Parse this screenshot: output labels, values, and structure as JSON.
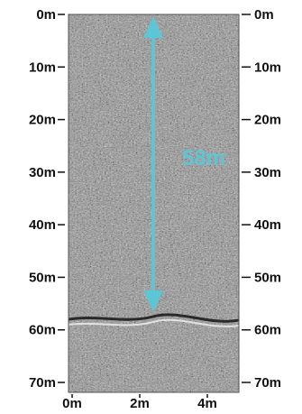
{
  "depth_axis": {
    "unit": "m",
    "ticks": [
      "0m",
      "10m",
      "20m",
      "30m",
      "40m",
      "50m",
      "60m",
      "70m"
    ],
    "values": [
      0,
      10,
      20,
      30,
      40,
      50,
      60,
      70
    ]
  },
  "distance_axis": {
    "ticks": [
      "0m",
      "2m",
      "4m"
    ],
    "values": [
      0,
      2,
      4
    ]
  },
  "measurement": {
    "label": "58m",
    "from_depth": 0,
    "to_depth": 58,
    "at_distance": 2.4
  },
  "reflector": {
    "depth": 58.5
  },
  "colors": {
    "arrow": "#5dc6d4",
    "label": "#5dc6d4",
    "tick_text": "#111111",
    "radargram_base": "#8a8a8a"
  }
}
